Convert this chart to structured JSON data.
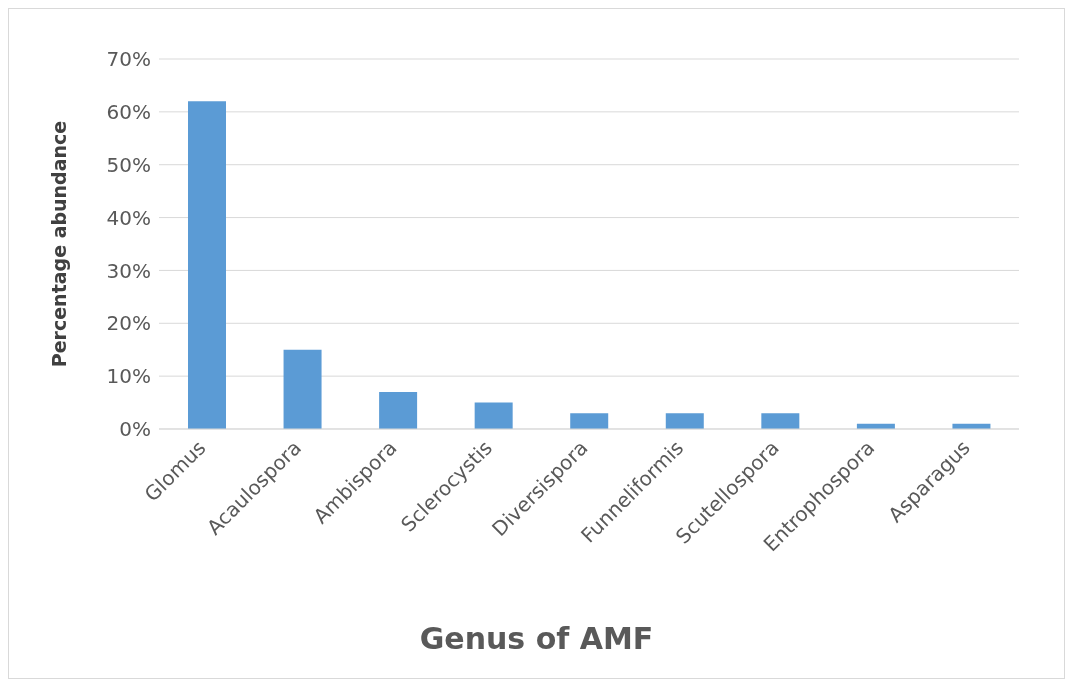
{
  "chart_data": {
    "type": "bar",
    "xlabel": "Genus of AMF",
    "ylabel": "Percentage abundance",
    "categories": [
      "Glomus",
      "Acaulospora",
      "Ambispora",
      "Sclerocystis",
      "Diversispora",
      "Funneliformis",
      "Scutellospora",
      "Entrophospora",
      "Asparagus"
    ],
    "values": [
      62,
      15,
      7,
      5,
      3,
      3,
      3,
      1,
      1
    ],
    "color": "#5b9bd5",
    "ylim": [
      0,
      70
    ],
    "yticks": [
      {
        "value": 0,
        "label": "0%"
      },
      {
        "value": 10,
        "label": "10%"
      },
      {
        "value": 20,
        "label": "20%"
      },
      {
        "value": 30,
        "label": "30%"
      },
      {
        "value": 40,
        "label": "40%"
      },
      {
        "value": 50,
        "label": "50%"
      },
      {
        "value": 60,
        "label": "60%"
      },
      {
        "value": 70,
        "label": "70%"
      }
    ],
    "grid": "y"
  }
}
